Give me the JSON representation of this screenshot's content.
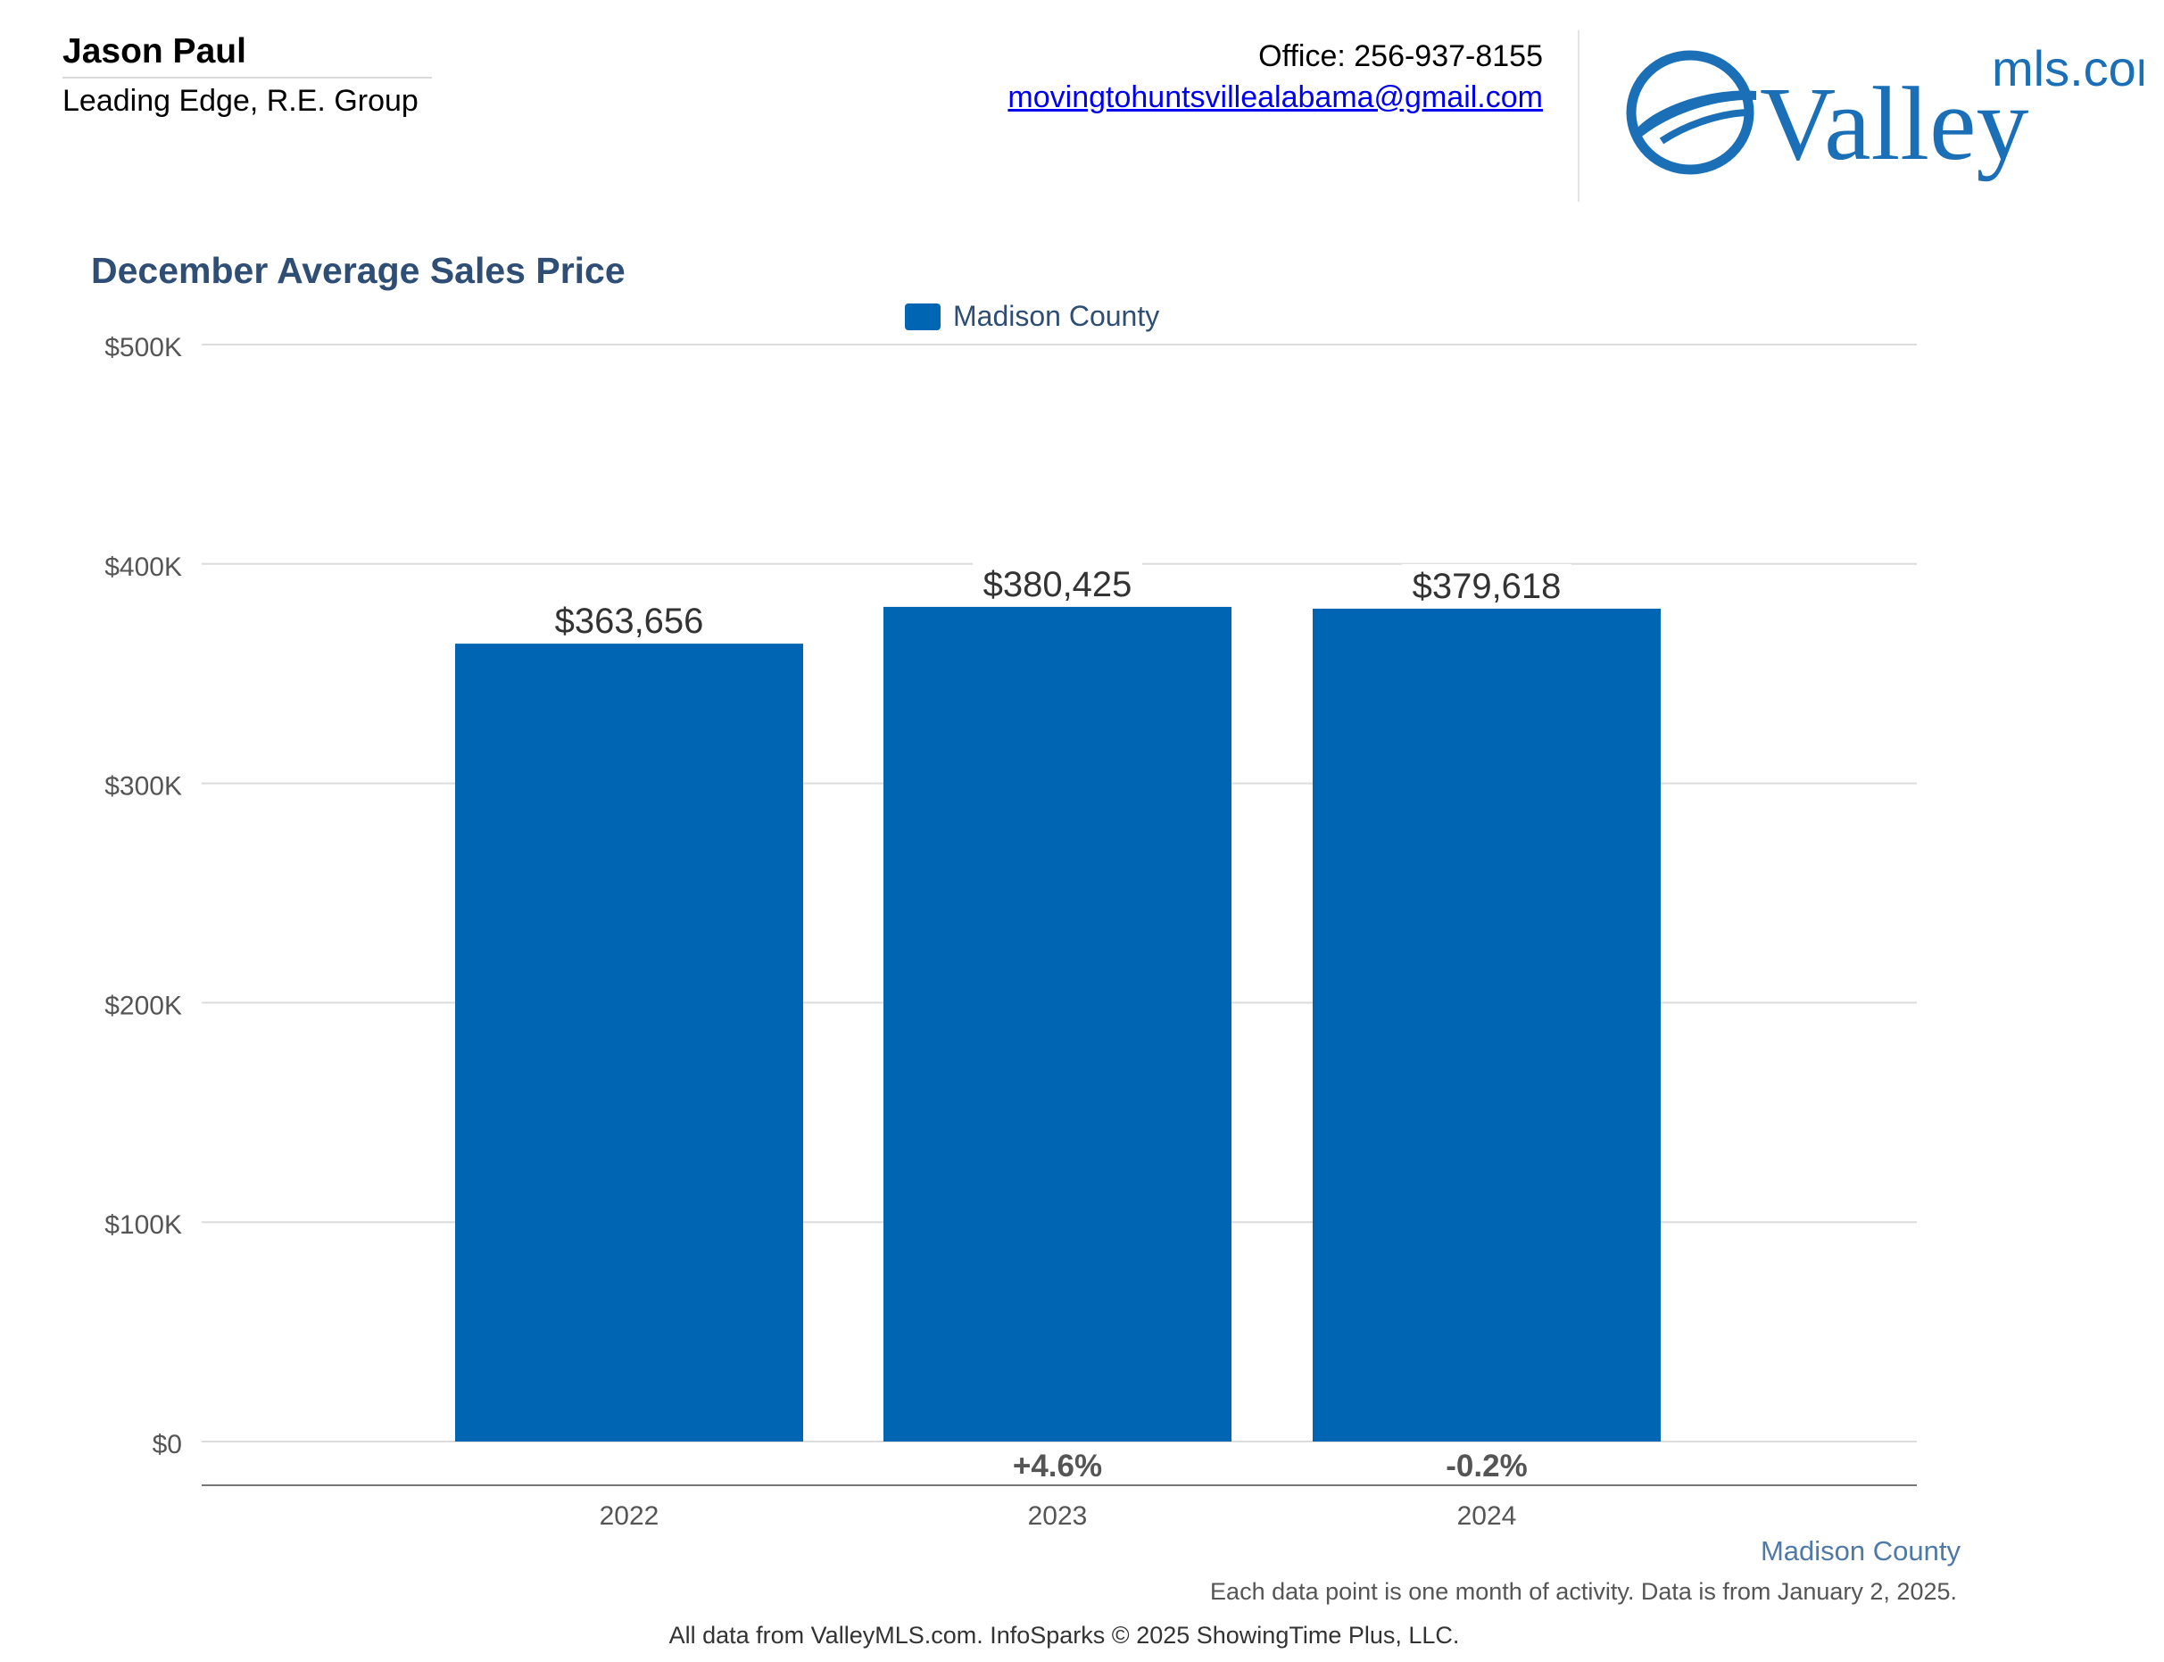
{
  "header": {
    "agent_name": "Jason Paul",
    "company": "Leading Edge, R.E. Group",
    "office": "Office: 256-937-8155",
    "email": "movingtohuntsvillealabama@gmail.com"
  },
  "logo": {
    "word": "Valley",
    "suffix": "mls.com",
    "color": "#1b6fb6"
  },
  "chart_data": {
    "type": "bar",
    "title": "December Average Sales Price",
    "legend": "Madison County",
    "series_color": "#0066b3",
    "categories": [
      "2022",
      "2023",
      "2024"
    ],
    "values": [
      363656,
      380425,
      379618
    ],
    "value_labels": [
      "$363,656",
      "$380,425",
      "$379,618"
    ],
    "change_labels": [
      "",
      "+4.6%",
      "-0.2%"
    ],
    "ylim": [
      0,
      500000
    ],
    "yticks": [
      0,
      100000,
      200000,
      300000,
      400000,
      500000
    ],
    "ytick_labels": [
      "$0",
      "$100K",
      "$200K",
      "$300K",
      "$400K",
      "$500K"
    ],
    "grid": true,
    "legend_position": "top-center"
  },
  "footer": {
    "series_label": "Madison County",
    "note": "Each data point is one month of activity. Data is from January 2, 2025.",
    "credit": "All data from ValleyMLS.com. InfoSparks © 2025 ShowingTime Plus, LLC."
  }
}
